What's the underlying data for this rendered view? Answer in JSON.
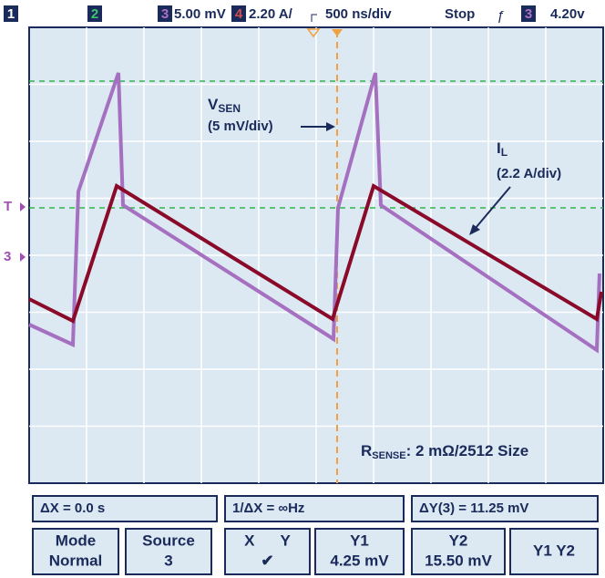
{
  "top_bar": {
    "ch1": "1",
    "ch2": "2",
    "ch3": "3",
    "ch3_scale": "5.00 mV",
    "ch4": "4",
    "ch4_scale": "2.20 A/",
    "timebase": "500 ns/div",
    "status": "Stop",
    "trigger_slope": "ƒ",
    "trigger_source": "3",
    "trigger_level": "4.20v"
  },
  "markers": {
    "trigger": "T",
    "ch3": "3"
  },
  "annotations": {
    "vsen_main": "V",
    "vsen_sub": "SEN",
    "vsen_scale": "(5 mV/div)",
    "il_main": "I",
    "il_sub": "L",
    "il_scale": "(2.2 A/div)",
    "rsense_main": "R",
    "rsense_sub": "SENSE",
    "rsense_rest": ": 2 mΩ/2512 Size"
  },
  "measurements": {
    "delta_x": "ΔX = 0.0 s",
    "inv_delta_x": "1/ΔX = ∞Hz",
    "delta_y": "ΔY(3) = 11.25 mV"
  },
  "buttons": [
    {
      "top": "Mode",
      "bottom": "Normal"
    },
    {
      "top": "Source",
      "bottom": "3"
    },
    {
      "top": "X      Y",
      "bottom": "✔"
    },
    {
      "top": "Y1",
      "bottom": "4.25 mV"
    },
    {
      "top": "Y2",
      "bottom": "15.50 mV"
    },
    {
      "top": "Y1 Y2",
      "bottom": ""
    }
  ]
}
